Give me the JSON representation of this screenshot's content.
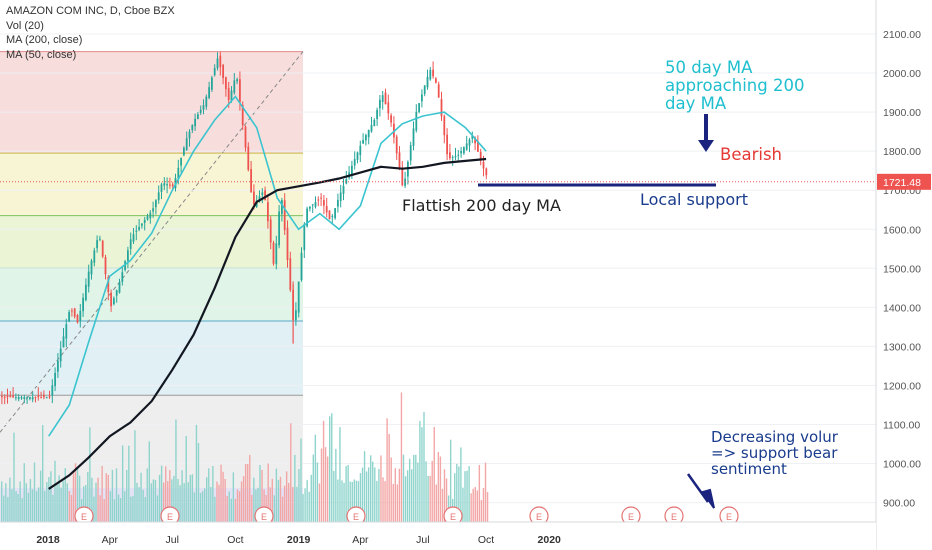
{
  "header": {
    "title": "AMAZON COM INC, D, Cboe BZX",
    "indicators": [
      "Vol (20)",
      "MA (200, close)",
      "MA (50, close)"
    ]
  },
  "chart_data": {
    "type": "candlestick",
    "symbol": "AMAZON COM INC",
    "interval": "D",
    "exchange": "Cboe BZX",
    "ylim": [
      860,
      2140
    ],
    "y_ticks": [
      "2100.00",
      "2000.00",
      "1900.00",
      "1800.00",
      "1700.00",
      "1600.00",
      "1500.00",
      "1400.00",
      "1300.00",
      "1200.00",
      "1100.00",
      "1000.00",
      "900.00"
    ],
    "x_ticks": [
      "2018",
      "Apr",
      "Jul",
      "Oct",
      "2019",
      "Apr",
      "Jul",
      "Oct",
      "2020"
    ],
    "last_price": "1721.48",
    "fib_levels": [
      2055,
      1795,
      1635,
      1500,
      1365,
      1175
    ],
    "annotations": [
      "50 day MA approaching 200 day MA",
      "Bearish",
      "Flattish 200 day MA",
      "Local support",
      "Decreasing volume => support bear sentiment"
    ],
    "annotation_lines": [
      [
        "50 day MA",
        "approaching 200",
        "day MA"
      ],
      [
        "Decreasing volur",
        "=> support bear",
        "sentiment"
      ]
    ],
    "earnings_markers": [
      "E",
      "E",
      "E",
      "E",
      "E",
      "E",
      "E",
      "E",
      "E"
    ],
    "series": [
      {
        "name": "MA (50, close)",
        "color": "#3bc4cf",
        "points": [
          [
            "2018-01-02",
            1070
          ],
          [
            "2018-02-01",
            1150
          ],
          [
            "2018-03-01",
            1310
          ],
          [
            "2018-04-01",
            1480
          ],
          [
            "2018-05-01",
            1520
          ],
          [
            "2018-06-01",
            1590
          ],
          [
            "2018-07-01",
            1700
          ],
          [
            "2018-08-01",
            1800
          ],
          [
            "2018-09-01",
            1880
          ],
          [
            "2018-10-01",
            1940
          ],
          [
            "2018-11-01",
            1860
          ],
          [
            "2018-12-01",
            1680
          ],
          [
            "2019-01-01",
            1600
          ],
          [
            "2019-02-01",
            1640
          ],
          [
            "2019-03-01",
            1600
          ],
          [
            "2019-04-01",
            1660
          ],
          [
            "2019-05-01",
            1820
          ],
          [
            "2019-06-01",
            1870
          ],
          [
            "2019-07-01",
            1890
          ],
          [
            "2019-08-01",
            1900
          ],
          [
            "2019-09-01",
            1860
          ],
          [
            "2019-10-01",
            1800
          ]
        ]
      },
      {
        "name": "MA (200, close)",
        "color": "#131722",
        "points": [
          [
            "2018-01-02",
            935
          ],
          [
            "2018-02-01",
            970
          ],
          [
            "2018-03-01",
            1015
          ],
          [
            "2018-04-01",
            1070
          ],
          [
            "2018-05-01",
            1105
          ],
          [
            "2018-06-01",
            1160
          ],
          [
            "2018-07-01",
            1240
          ],
          [
            "2018-08-01",
            1330
          ],
          [
            "2018-09-01",
            1450
          ],
          [
            "2018-10-01",
            1580
          ],
          [
            "2018-11-01",
            1670
          ],
          [
            "2018-12-01",
            1700
          ],
          [
            "2019-01-01",
            1710
          ],
          [
            "2019-02-01",
            1720
          ],
          [
            "2019-03-01",
            1730
          ],
          [
            "2019-04-01",
            1745
          ],
          [
            "2019-05-01",
            1760
          ],
          [
            "2019-06-01",
            1755
          ],
          [
            "2019-07-01",
            1760
          ],
          [
            "2019-08-01",
            1770
          ],
          [
            "2019-09-01",
            1775
          ],
          [
            "2019-10-01",
            1780
          ]
        ]
      },
      {
        "name": "Price (approx. close)",
        "color": "#26a69a",
        "points": [
          [
            "2018-01-02",
            1170
          ],
          [
            "2018-01-15",
            1270
          ],
          [
            "2018-02-01",
            1400
          ],
          [
            "2018-02-12",
            1360
          ],
          [
            "2018-03-01",
            1500
          ],
          [
            "2018-03-15",
            1590
          ],
          [
            "2018-04-01",
            1400
          ],
          [
            "2018-04-15",
            1470
          ],
          [
            "2018-05-01",
            1580
          ],
          [
            "2018-06-01",
            1650
          ],
          [
            "2018-06-15",
            1720
          ],
          [
            "2018-07-01",
            1710
          ],
          [
            "2018-07-20",
            1830
          ],
          [
            "2018-08-01",
            1880
          ],
          [
            "2018-08-15",
            1920
          ],
          [
            "2018-09-04",
            2040
          ],
          [
            "2018-09-20",
            1930
          ],
          [
            "2018-10-01",
            2000
          ],
          [
            "2018-10-10",
            1870
          ],
          [
            "2018-10-25",
            1660
          ],
          [
            "2018-11-10",
            1700
          ],
          [
            "2018-11-25",
            1500
          ],
          [
            "2018-12-05",
            1700
          ],
          [
            "2018-12-24",
            1343
          ],
          [
            "2019-01-10",
            1650
          ],
          [
            "2019-02-01",
            1680
          ],
          [
            "2019-02-15",
            1620
          ],
          [
            "2019-03-01",
            1690
          ],
          [
            "2019-04-01",
            1820
          ],
          [
            "2019-04-20",
            1880
          ],
          [
            "2019-05-01",
            1950
          ],
          [
            "2019-05-15",
            1870
          ],
          [
            "2019-06-01",
            1700
          ],
          [
            "2019-06-20",
            1900
          ],
          [
            "2019-07-10",
            2010
          ],
          [
            "2019-07-20",
            1970
          ],
          [
            "2019-08-05",
            1780
          ],
          [
            "2019-08-20",
            1790
          ],
          [
            "2019-09-10",
            1840
          ],
          [
            "2019-09-25",
            1760
          ],
          [
            "2019-10-04",
            1721.48
          ]
        ]
      }
    ]
  }
}
